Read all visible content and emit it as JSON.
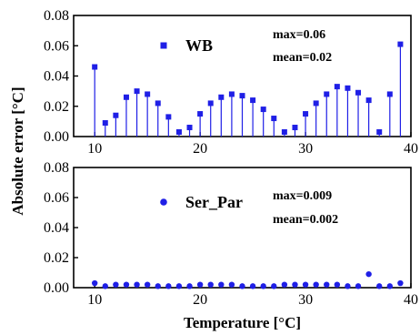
{
  "chart_data": [
    {
      "type": "scatter",
      "style": "stem",
      "marker": "square",
      "color": "#1f1fe6",
      "xlim": [
        8,
        40
      ],
      "ylim": [
        0,
        0.08
      ],
      "xticks": [
        "10",
        "20",
        "30",
        "40"
      ],
      "yticks": [
        "0.00",
        "0.02",
        "0.04",
        "0.06",
        "0.08"
      ],
      "x": [
        10,
        11,
        12,
        13,
        14,
        15,
        16,
        17,
        18,
        19,
        20,
        21,
        22,
        23,
        24,
        25,
        26,
        27,
        28,
        29,
        30,
        31,
        32,
        33,
        34,
        35,
        36,
        37,
        38,
        39
      ],
      "series": [
        {
          "name": "WB",
          "values": [
            0.046,
            0.009,
            0.014,
            0.026,
            0.03,
            0.028,
            0.022,
            0.013,
            0.003,
            0.006,
            0.015,
            0.022,
            0.026,
            0.028,
            0.027,
            0.024,
            0.018,
            0.012,
            0.003,
            0.006,
            0.015,
            0.022,
            0.028,
            0.033,
            0.032,
            0.029,
            0.024,
            0.003,
            0.028,
            0.061
          ]
        }
      ],
      "annotations": [
        "max=0.06",
        "mean=0.02"
      ],
      "legend_position": "top-left"
    },
    {
      "type": "scatter",
      "marker": "circle",
      "color": "#1f1fe6",
      "xlim": [
        8,
        40
      ],
      "ylim": [
        0,
        0.08
      ],
      "xticks": [
        "10",
        "20",
        "30",
        "40"
      ],
      "yticks": [
        "0.00",
        "0.02",
        "0.04",
        "0.06",
        "0.08"
      ],
      "x": [
        10,
        11,
        12,
        13,
        14,
        15,
        16,
        17,
        18,
        19,
        20,
        21,
        22,
        23,
        24,
        25,
        26,
        27,
        28,
        29,
        30,
        31,
        32,
        33,
        34,
        35,
        36,
        37,
        38,
        39
      ],
      "series": [
        {
          "name": "Ser_Par",
          "values": [
            0.003,
            0.001,
            0.002,
            0.002,
            0.002,
            0.002,
            0.001,
            0.001,
            0.001,
            0.001,
            0.002,
            0.002,
            0.002,
            0.002,
            0.001,
            0.001,
            0.001,
            0.001,
            0.002,
            0.002,
            0.002,
            0.002,
            0.002,
            0.002,
            0.001,
            0.001,
            0.009,
            0.001,
            0.001,
            0.003
          ]
        }
      ],
      "annotations": [
        "max=0.009",
        "mean=0.002"
      ],
      "legend_position": "top-left"
    }
  ],
  "xlabel": "Temperature [°C]",
  "ylabel": "Absolute error [°C]"
}
